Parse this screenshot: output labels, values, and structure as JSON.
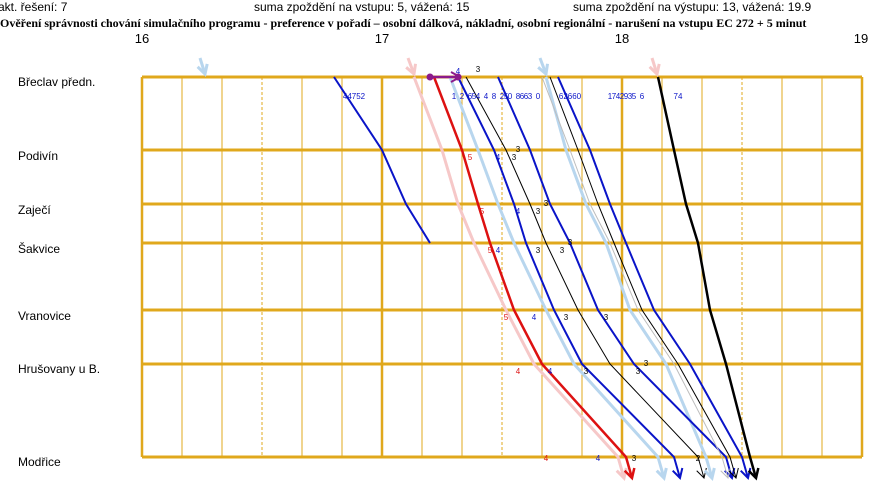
{
  "header": {
    "iteration": "akt. řešení: 7",
    "input_delay": "suma zpoždění na vstupu: 5,  vážená: 15",
    "output_delay": "suma zpoždění na výstupu: 13,  vážená: 19.9"
  },
  "title": "Ověření správnosti chování simulačního programu - preference v pořadí – osobní dálková, nákladní, osobní regionální  - narušení na vstupu EC 272 + 5 minut",
  "hours": [
    "16",
    "17",
    "18",
    "19"
  ],
  "stations": [
    "Břeclav předn.",
    "Podivín",
    "Zaječí",
    "Šakvice",
    "Vranovice",
    "Hrušovany u B.",
    "Modřice"
  ],
  "chart_data": {
    "type": "line",
    "x_unit": "minutes after 16:00",
    "x_range": [
      0,
      180
    ],
    "stations": [
      "Břeclav předn.",
      "Podivín",
      "Zaječí",
      "Šakvice",
      "Vranovice",
      "Hrušovany u B.",
      "Modřice"
    ],
    "colors": {
      "grid": "#e0a81c",
      "red": "#dd1111",
      "blue": "#0a14c8",
      "lightblue": "#b8d6ee",
      "pink": "#f6c8c8",
      "black": "#000000",
      "gray": "#bdbdbd",
      "purple": "#8b1a8b"
    },
    "trains": [
      {
        "color": "lightblue",
        "width": 3,
        "times": [],
        "arrow": "down",
        "arrow_at": 15
      },
      {
        "color": "blue",
        "width": 2,
        "times": [
          48,
          60,
          66,
          72
        ]
      },
      {
        "color": "pink",
        "width": 3,
        "times": [
          68,
          75,
          79,
          83,
          91,
          98,
          119
        ],
        "arrow": "down",
        "top_arrow": true
      },
      {
        "color": "red",
        "width": 2.5,
        "times": [
          73,
          80,
          84,
          87,
          93,
          100,
          121
        ],
        "arrow": "down"
      },
      {
        "color": "lightblue",
        "width": 3,
        "times": [
          77,
          84,
          89,
          93,
          101,
          108,
          129
        ],
        "arrow": "down"
      },
      {
        "color": "blue",
        "width": 2,
        "times": [
          79,
          88,
          93,
          96,
          103,
          110,
          133
        ],
        "arrow": "down"
      },
      {
        "color": "black",
        "width": 1,
        "times": [
          81,
          91,
          97,
          101,
          109,
          117,
          139
        ],
        "arrow": "down"
      },
      {
        "color": "lightblue",
        "width": 3,
        "times": [
          101,
          106,
          111,
          116,
          122,
          131,
          141
        ],
        "arrow": "down",
        "top_arrow": true
      },
      {
        "color": "blue",
        "width": 2,
        "times": [
          89,
          97,
          102,
          107,
          114,
          123,
          146
        ],
        "arrow": "down"
      },
      {
        "color": "gray",
        "width": 1,
        "times": [
          100,
          107,
          112,
          117,
          124,
          133,
          145
        ],
        "arrow": "down"
      },
      {
        "color": "black",
        "width": 1,
        "times": [
          102,
          109,
          114,
          118,
          125,
          134,
          147
        ],
        "arrow": "down"
      },
      {
        "color": "blue",
        "width": 2,
        "times": [
          104,
          112,
          117,
          121,
          128,
          137,
          150
        ],
        "arrow": "down"
      },
      {
        "color": "pink",
        "width": 3,
        "times": [],
        "arrow": "down",
        "arrow_at": 128
      },
      {
        "color": "black",
        "width": 2.5,
        "times": [
          129,
          133,
          136,
          139,
          142,
          146,
          152
        ],
        "arrow": "down"
      },
      {
        "color": "purple",
        "width": 2.5,
        "times": [
          72,
          79
        ],
        "station_index": 0,
        "purple_segment": true
      }
    ],
    "train_numbers": [
      {
        "text": "44752",
        "t": 53
      },
      {
        "text": "1",
        "t": 78
      },
      {
        "text": "2",
        "t": 80
      },
      {
        "text": "6",
        "t": 82
      },
      {
        "text": "5",
        "t": 83
      },
      {
        "text": "4",
        "t": 84
      },
      {
        "text": "4",
        "t": 86
      },
      {
        "text": "8",
        "t": 88
      },
      {
        "text": "2",
        "t": 90
      },
      {
        "text": "5",
        "t": 91
      },
      {
        "text": "0",
        "t": 92
      },
      {
        "text": "8",
        "t": 94
      },
      {
        "text": "6",
        "t": 95
      },
      {
        "text": "6",
        "t": 96
      },
      {
        "text": "3",
        "t": 97
      },
      {
        "text": "0",
        "t": 99
      },
      {
        "text": "62660",
        "t": 107
      },
      {
        "text": "1",
        "t": 117
      },
      {
        "text": "7",
        "t": 118
      },
      {
        "text": "4",
        "t": 119
      },
      {
        "text": "2",
        "t": 120
      },
      {
        "text": "9",
        "t": 121
      },
      {
        "text": "3",
        "t": 122
      },
      {
        "text": "5",
        "t": 123
      },
      {
        "text": "6",
        "t": 125
      },
      {
        "text": "74",
        "t": 134
      }
    ],
    "delay_labels": [
      {
        "text": "4",
        "t": 79,
        "row": 0,
        "dy": -3,
        "color": "blue"
      },
      {
        "text": "3",
        "t": 84,
        "row": 0,
        "dy": -5,
        "color": "black"
      },
      {
        "text": "5",
        "t": 82,
        "row": 1,
        "dy": 10,
        "color": "red"
      },
      {
        "text": "4",
        "t": 89,
        "row": 1,
        "dy": 10,
        "color": "blue"
      },
      {
        "text": "3",
        "t": 93,
        "row": 1,
        "dy": 10,
        "color": "black"
      },
      {
        "text": "3",
        "t": 94,
        "row": 1,
        "dy": 2,
        "color": "black"
      },
      {
        "text": "5",
        "t": 85,
        "row": 2,
        "dy": 10,
        "color": "red"
      },
      {
        "text": "4",
        "t": 94,
        "row": 2,
        "dy": 10,
        "color": "blue"
      },
      {
        "text": "3",
        "t": 99,
        "row": 2,
        "dy": 10,
        "color": "black"
      },
      {
        "text": "3",
        "t": 101,
        "row": 2,
        "dy": 2,
        "color": "black"
      },
      {
        "text": "5",
        "t": 87,
        "row": 3,
        "dy": 10,
        "color": "red"
      },
      {
        "text": "4",
        "t": 89,
        "row": 3,
        "dy": 10,
        "color": "blue"
      },
      {
        "text": "3",
        "t": 99,
        "row": 3,
        "dy": 10,
        "color": "black"
      },
      {
        "text": "3",
        "t": 105,
        "row": 3,
        "dy": 10,
        "color": "black"
      },
      {
        "text": "3",
        "t": 107,
        "row": 3,
        "dy": 2,
        "color": "black"
      },
      {
        "text": "5",
        "t": 91,
        "row": 4,
        "dy": 10,
        "color": "red"
      },
      {
        "text": "4",
        "t": 98,
        "row": 4,
        "dy": 10,
        "color": "blue"
      },
      {
        "text": "3",
        "t": 106,
        "row": 4,
        "dy": 10,
        "color": "black"
      },
      {
        "text": "3",
        "t": 116,
        "row": 4,
        "dy": 10,
        "color": "black"
      },
      {
        "text": "4",
        "t": 94,
        "row": 5,
        "dy": 10,
        "color": "red"
      },
      {
        "text": "4",
        "t": 102,
        "row": 5,
        "dy": 10,
        "color": "blue"
      },
      {
        "text": "3",
        "t": 111,
        "row": 5,
        "dy": 10,
        "color": "black"
      },
      {
        "text": "3",
        "t": 124,
        "row": 5,
        "dy": 10,
        "color": "black"
      },
      {
        "text": "3",
        "t": 126,
        "row": 5,
        "dy": 2,
        "color": "black"
      },
      {
        "text": "4",
        "t": 101,
        "row": 6,
        "dy": 4,
        "color": "red"
      },
      {
        "text": "4",
        "t": 114,
        "row": 6,
        "dy": 4,
        "color": "blue"
      },
      {
        "text": "3",
        "t": 123,
        "row": 6,
        "dy": 4,
        "color": "black"
      },
      {
        "text": "2",
        "t": 139,
        "row": 6,
        "dy": 4,
        "color": "black"
      }
    ]
  }
}
